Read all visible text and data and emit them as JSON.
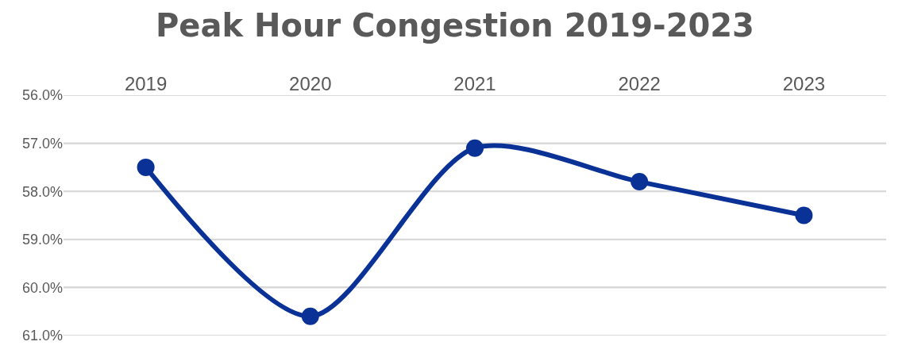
{
  "chart_data": {
    "type": "line",
    "title": "Peak Hour Congestion 2019-2023",
    "categories": [
      "2019",
      "2020",
      "2021",
      "2022",
      "2023"
    ],
    "series": [
      {
        "color": "#0a3296",
        "values": [
          57.5,
          60.6,
          57.1,
          57.8,
          58.5
        ]
      }
    ],
    "ylim": [
      61,
      56
    ],
    "yticks": [
      {
        "value": 56,
        "label": "56.0%"
      },
      {
        "value": 57,
        "label": "57.0%"
      },
      {
        "value": 58,
        "label": "58.0%"
      },
      {
        "value": 59,
        "label": "59.0%"
      },
      {
        "value": 60,
        "label": "60.0%"
      },
      {
        "value": 61,
        "label": "61.0%"
      }
    ],
    "grid": "y",
    "marker": "circle",
    "line_style": "solid"
  }
}
